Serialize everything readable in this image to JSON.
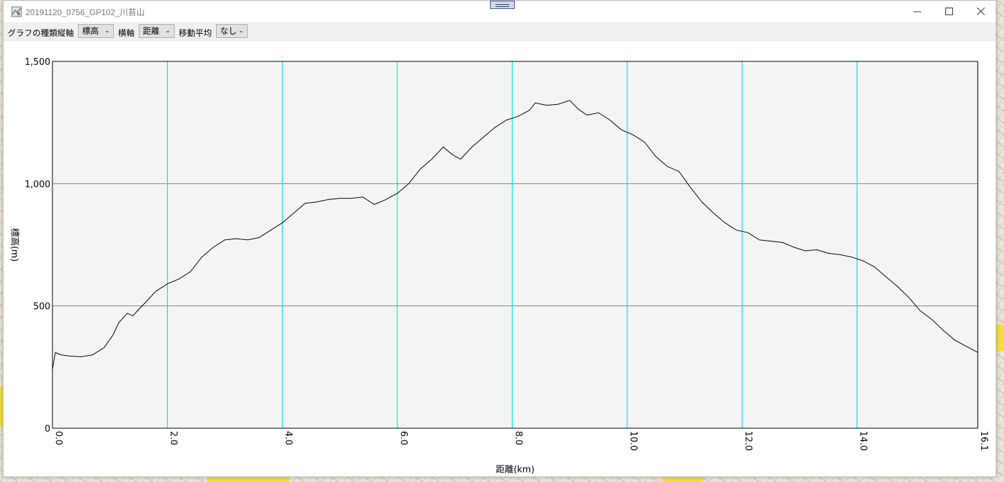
{
  "window": {
    "title": "20191120_0756_GP102_川苔山",
    "icons": {
      "app": "map-app-icon",
      "minimize": "minimize-icon",
      "maximize": "maximize-icon",
      "close": "close-icon",
      "grip": "grip-icon"
    }
  },
  "toolbar": {
    "graph_type_label": "グラフの種類",
    "vertical_axis_label": "縦軸",
    "vertical_axis_value": "標高",
    "horizontal_axis_label": "横軸",
    "horizontal_axis_value": "距離",
    "moving_average_label": "移動平均",
    "moving_average_value": "なし"
  },
  "colors": {
    "plot_background": "#f4f4f4",
    "vertical_grid": "#00e5e5",
    "horizontal_grid": "#808080",
    "line": "#000000"
  },
  "chart_data": {
    "type": "line",
    "xlabel": "距離(km)",
    "ylabel": "標高(m)",
    "xlim": [
      0,
      16.1
    ],
    "ylim": [
      0,
      1500
    ],
    "x_ticks": [
      "0.0",
      "2.0",
      "4.0",
      "6.0",
      "8.0",
      "10.0",
      "12.0",
      "14.0",
      "16.1"
    ],
    "y_ticks": [
      "0",
      "500",
      "1,000",
      "1,500"
    ],
    "grid": {
      "vertical": true,
      "horizontal": true
    },
    "series": [
      {
        "x": [
          0.0,
          0.05,
          0.15,
          0.3,
          0.5,
          0.7,
          0.9,
          1.05,
          1.15,
          1.3,
          1.4,
          1.6,
          1.8,
          2.0,
          2.2,
          2.4,
          2.6,
          2.8,
          3.0,
          3.2,
          3.4,
          3.6,
          3.8,
          4.0,
          4.2,
          4.4,
          4.6,
          4.8,
          5.0,
          5.2,
          5.4,
          5.6,
          5.8,
          6.0,
          6.2,
          6.4,
          6.6,
          6.8,
          6.95,
          7.1,
          7.3,
          7.5,
          7.7,
          7.9,
          8.1,
          8.3,
          8.4,
          8.6,
          8.8,
          9.0,
          9.15,
          9.3,
          9.5,
          9.7,
          9.9,
          10.1,
          10.3,
          10.5,
          10.7,
          10.9,
          11.1,
          11.3,
          11.5,
          11.7,
          11.9,
          12.1,
          12.3,
          12.5,
          12.7,
          12.9,
          13.1,
          13.3,
          13.5,
          13.7,
          13.9,
          14.1,
          14.3,
          14.5,
          14.7,
          14.9,
          15.1,
          15.3,
          15.5,
          15.7,
          15.9,
          16.1
        ],
        "y": [
          240,
          310,
          300,
          295,
          292,
          300,
          330,
          380,
          430,
          470,
          460,
          510,
          560,
          590,
          610,
          640,
          700,
          740,
          770,
          775,
          770,
          780,
          810,
          840,
          880,
          920,
          925,
          935,
          940,
          940,
          945,
          915,
          935,
          960,
          1000,
          1060,
          1100,
          1150,
          1120,
          1100,
          1150,
          1190,
          1230,
          1260,
          1275,
          1300,
          1330,
          1320,
          1325,
          1340,
          1305,
          1280,
          1290,
          1260,
          1220,
          1200,
          1170,
          1110,
          1070,
          1050,
          985,
          925,
          880,
          840,
          810,
          800,
          770,
          765,
          760,
          740,
          725,
          730,
          715,
          710,
          700,
          685,
          660,
          620,
          580,
          535,
          480,
          445,
          400,
          360,
          335,
          310
        ]
      }
    ]
  }
}
